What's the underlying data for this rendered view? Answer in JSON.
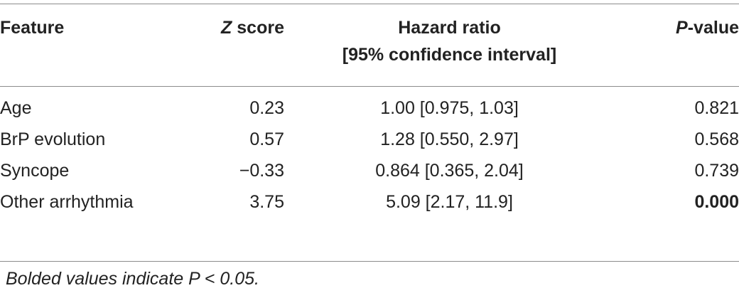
{
  "table": {
    "headers": {
      "feature": "Feature",
      "z_italic": "Z",
      "z_rest": " score",
      "hr_line1": "Hazard ratio",
      "hr_line2": "[95% confidence interval]",
      "p_italic": "P",
      "p_rest": "-value"
    },
    "rows": [
      {
        "feature": "Age",
        "z": "0.23",
        "hr": "1.00 [0.975, 1.03]",
        "p": "0.821",
        "p_bold": false
      },
      {
        "feature": "BrP evolution",
        "z": "0.57",
        "hr": "1.28 [0.550, 2.97]",
        "p": "0.568",
        "p_bold": false
      },
      {
        "feature": "Syncope",
        "z": "−0.33",
        "hr": "0.864 [0.365, 2.04]",
        "p": "0.739",
        "p_bold": false
      },
      {
        "feature": "Other arrhythmia",
        "z": "3.75",
        "hr": "5.09 [2.17, 11.9]",
        "p": "0.000",
        "p_bold": true
      }
    ]
  },
  "footnote": "Bolded values indicate P < 0.05."
}
